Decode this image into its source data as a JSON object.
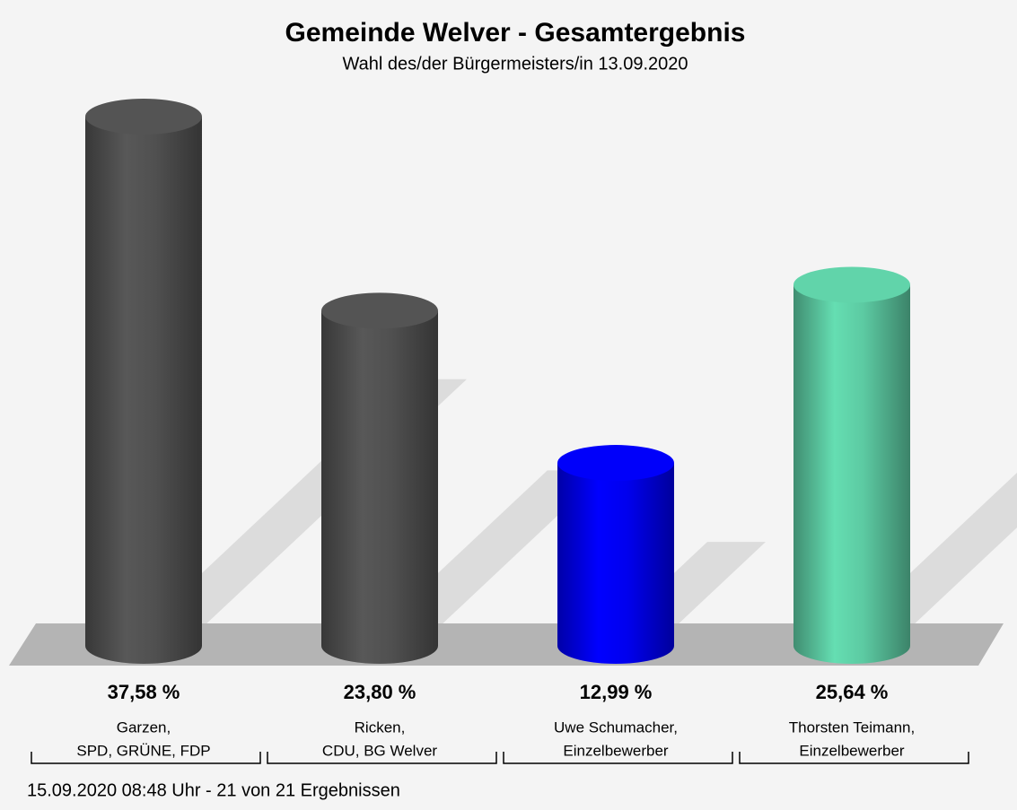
{
  "chart_data": {
    "type": "bar",
    "title": "Gemeinde Welver - Gesamtergebnis",
    "subtitle": "Wahl des/der Bürgermeisters/in 13.09.2020",
    "categories": [
      [
        "Garzen,",
        "SPD, GRÜNE, FDP"
      ],
      [
        "Ricken,",
        "CDU, BG Welver"
      ],
      [
        "Uwe Schumacher,",
        "Einzelbewerber"
      ],
      [
        "Thorsten Teimann,",
        "Einzelbewerber"
      ]
    ],
    "values": [
      37.58,
      23.8,
      12.99,
      25.64
    ],
    "value_labels": [
      "37,58 %",
      "23,80 %",
      "12,99 %",
      "25,64 %"
    ],
    "colors": [
      "#505050",
      "#505050",
      "#0000ee",
      "#5ccaa2"
    ],
    "footer": "15.09.2020 08:48 Uhr - 21 von 21 Ergebnissen"
  }
}
